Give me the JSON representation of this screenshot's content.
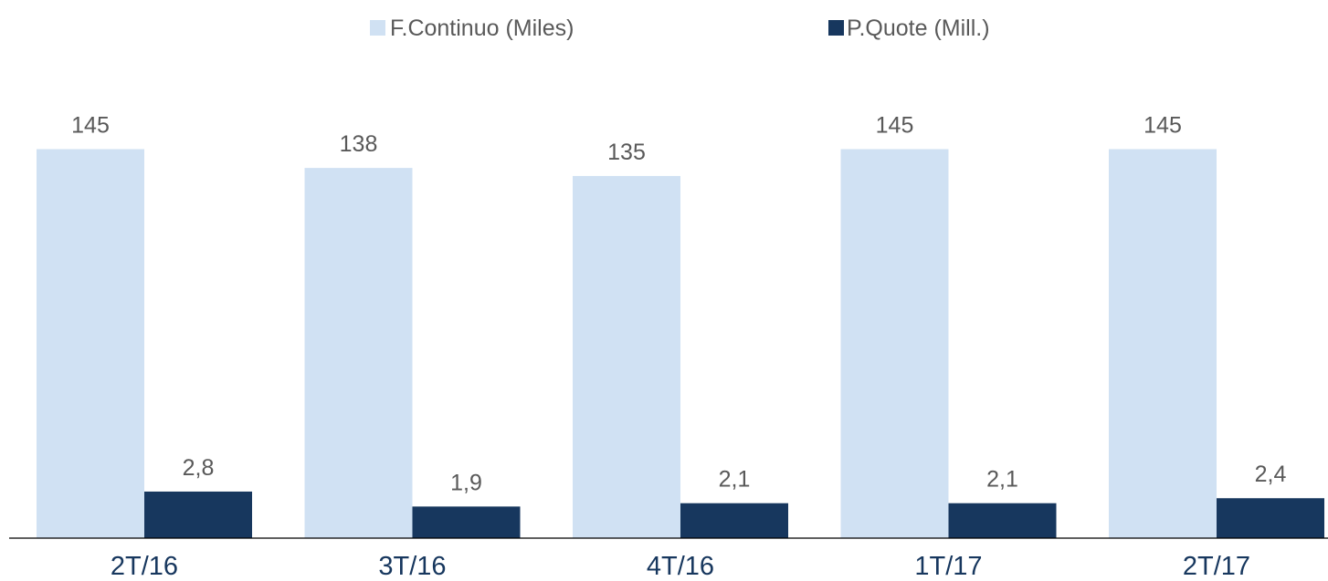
{
  "chart_data": {
    "type": "bar",
    "categories": [
      "2T/16",
      "3T/16",
      "4T/16",
      "1T/17",
      "2T/17"
    ],
    "series": [
      {
        "name": "F.Continuo (Miles)",
        "color": "#d0e1f3",
        "values": [
          145,
          138,
          135,
          145,
          145
        ],
        "labels": [
          "145",
          "138",
          "135",
          "145",
          "145"
        ]
      },
      {
        "name": "P.Quote (Mill.)",
        "color": "#17375e",
        "values": [
          2.8,
          1.9,
          2.1,
          2.1,
          2.4
        ],
        "labels": [
          "2,8",
          "1,9",
          "2,1",
          "2,1",
          "2,4"
        ]
      }
    ],
    "legend": "top-center",
    "grid": false,
    "secondary_axis": true
  }
}
